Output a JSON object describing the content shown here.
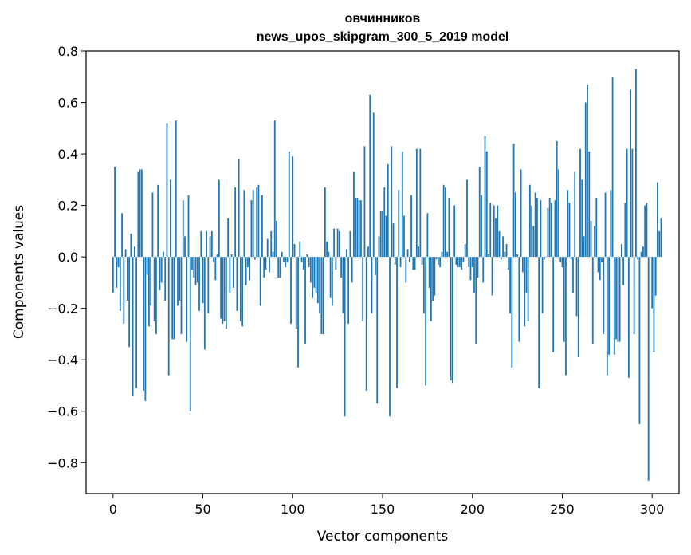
{
  "chart_data": {
    "type": "bar",
    "title": "овчинников",
    "subtitle": "news_upos_skipgram_300_5_2019 model",
    "xlabel": "Vector components",
    "ylabel": "Components values",
    "xlim": [
      -15,
      315
    ],
    "ylim": [
      -0.92,
      0.8
    ],
    "xticks": [
      0,
      50,
      100,
      150,
      200,
      250,
      300
    ],
    "yticks": [
      -0.8,
      -0.6,
      -0.4,
      -0.2,
      0.0,
      0.2,
      0.4,
      0.6,
      0.8
    ],
    "ytick_labels": [
      "−0.8",
      "−0.6",
      "−0.4",
      "−0.2",
      "0.0",
      "0.2",
      "0.4",
      "0.6",
      "0.8"
    ],
    "grid": false,
    "bar_color": "#1f77b4",
    "values": [
      -0.14,
      0.35,
      -0.12,
      -0.04,
      -0.21,
      0.17,
      -0.26,
      0.03,
      -0.17,
      -0.35,
      0.09,
      -0.54,
      0.04,
      -0.51,
      0.33,
      0.34,
      0.34,
      -0.52,
      -0.56,
      -0.07,
      -0.27,
      -0.19,
      0.25,
      -0.25,
      -0.3,
      0.28,
      -0.13,
      -0.1,
      0.02,
      -0.17,
      0.52,
      -0.46,
      0.3,
      -0.32,
      -0.32,
      0.53,
      -0.19,
      -0.17,
      -0.3,
      0.22,
      0.08,
      -0.33,
      0.24,
      -0.6,
      -0.05,
      -0.08,
      -0.11,
      -0.1,
      -0.21,
      0.1,
      -0.18,
      -0.36,
      0.1,
      -0.22,
      0.08,
      0.1,
      -0.02,
      -0.09,
      0.01,
      0.3,
      -0.24,
      -0.26,
      -0.25,
      -0.28,
      0.15,
      -0.14,
      0.01,
      -0.12,
      0.27,
      -0.21,
      0.38,
      -0.25,
      -0.27,
      0.26,
      -0.11,
      -0.04,
      -0.09,
      0.22,
      0.26,
      -0.01,
      0.27,
      0.28,
      -0.19,
      0.24,
      -0.08,
      -0.05,
      0.07,
      -0.06,
      0.1,
      0.02,
      0.53,
      0.14,
      -0.08,
      -0.08,
      0.02,
      -0.02,
      -0.04,
      -0.02,
      0.41,
      -0.26,
      0.39,
      0.05,
      -0.28,
      -0.43,
      0.06,
      -0.02,
      -0.05,
      -0.34,
      0.01,
      -0.04,
      -0.1,
      -0.16,
      -0.12,
      -0.14,
      -0.18,
      -0.22,
      -0.3,
      -0.3,
      0.27,
      0.06,
      0.02,
      -0.16,
      -0.19,
      0.11,
      -0.05,
      0.11,
      0.1,
      -0.08,
      -0.22,
      -0.62,
      0.03,
      -0.26,
      0.1,
      -0.1,
      0.33,
      0.23,
      0.23,
      0.22,
      0.22,
      -0.25,
      0.43,
      -0.52,
      0.04,
      0.63,
      -0.22,
      0.56,
      -0.07,
      -0.57,
      0.08,
      0.18,
      0.18,
      0.27,
      0.16,
      0.36,
      -0.62,
      0.43,
      0.13,
      -0.03,
      -0.51,
      0.26,
      -0.04,
      0.41,
      0.16,
      -0.1,
      0.03,
      -0.02,
      0.24,
      -0.05,
      -0.05,
      0.42,
      0.04,
      0.42,
      -0.03,
      -0.22,
      -0.5,
      0.17,
      -0.12,
      -0.25,
      -0.17,
      -0.15,
      -0.01,
      -0.03,
      -0.04,
      0.02,
      0.28,
      0.27,
      0.02,
      0.23,
      -0.48,
      -0.49,
      0.2,
      -0.03,
      -0.04,
      -0.04,
      -0.05,
      -0.02,
      0.05,
      0.3,
      -0.04,
      -0.09,
      -0.04,
      -0.14,
      -0.34,
      -0.08,
      0.35,
      0.24,
      -0.1,
      0.47,
      0.41,
      0.01,
      0.21,
      -0.15,
      0.2,
      0.15,
      0.2,
      0.1,
      -0.01,
      0.08,
      0.02,
      0.05,
      -0.05,
      -0.22,
      -0.43,
      0.44,
      0.25,
      0.01,
      -0.33,
      0.34,
      -0.06,
      -0.27,
      -0.14,
      -0.25,
      0.28,
      0.2,
      0.12,
      0.25,
      0.23,
      -0.51,
      0.22,
      -0.22,
      -0.01,
      0.0,
      0.19,
      0.23,
      0.21,
      -0.37,
      0.22,
      0.45,
      0.34,
      -0.02,
      -0.04,
      -0.33,
      -0.46,
      0.26,
      0.21,
      -0.01,
      -0.14,
      0.33,
      -0.23,
      -0.39,
      0.42,
      0.3,
      0.08,
      0.6,
      0.67,
      0.41,
      0.14,
      -0.34,
      0.12,
      0.23,
      -0.06,
      -0.09,
      -0.02,
      -0.3,
      0.25,
      -0.46,
      -0.38,
      0.26,
      0.7,
      -0.38,
      -0.32,
      -0.33,
      -0.33,
      0.05,
      -0.11,
      0.21,
      0.42,
      -0.47,
      0.65,
      0.42,
      -0.3,
      0.73,
      -0.01,
      -0.65,
      0.02,
      0.04,
      0.2,
      0.21,
      -0.87,
      0.0,
      -0.2,
      -0.37,
      -0.15,
      0.29,
      0.1,
      0.15
    ]
  }
}
